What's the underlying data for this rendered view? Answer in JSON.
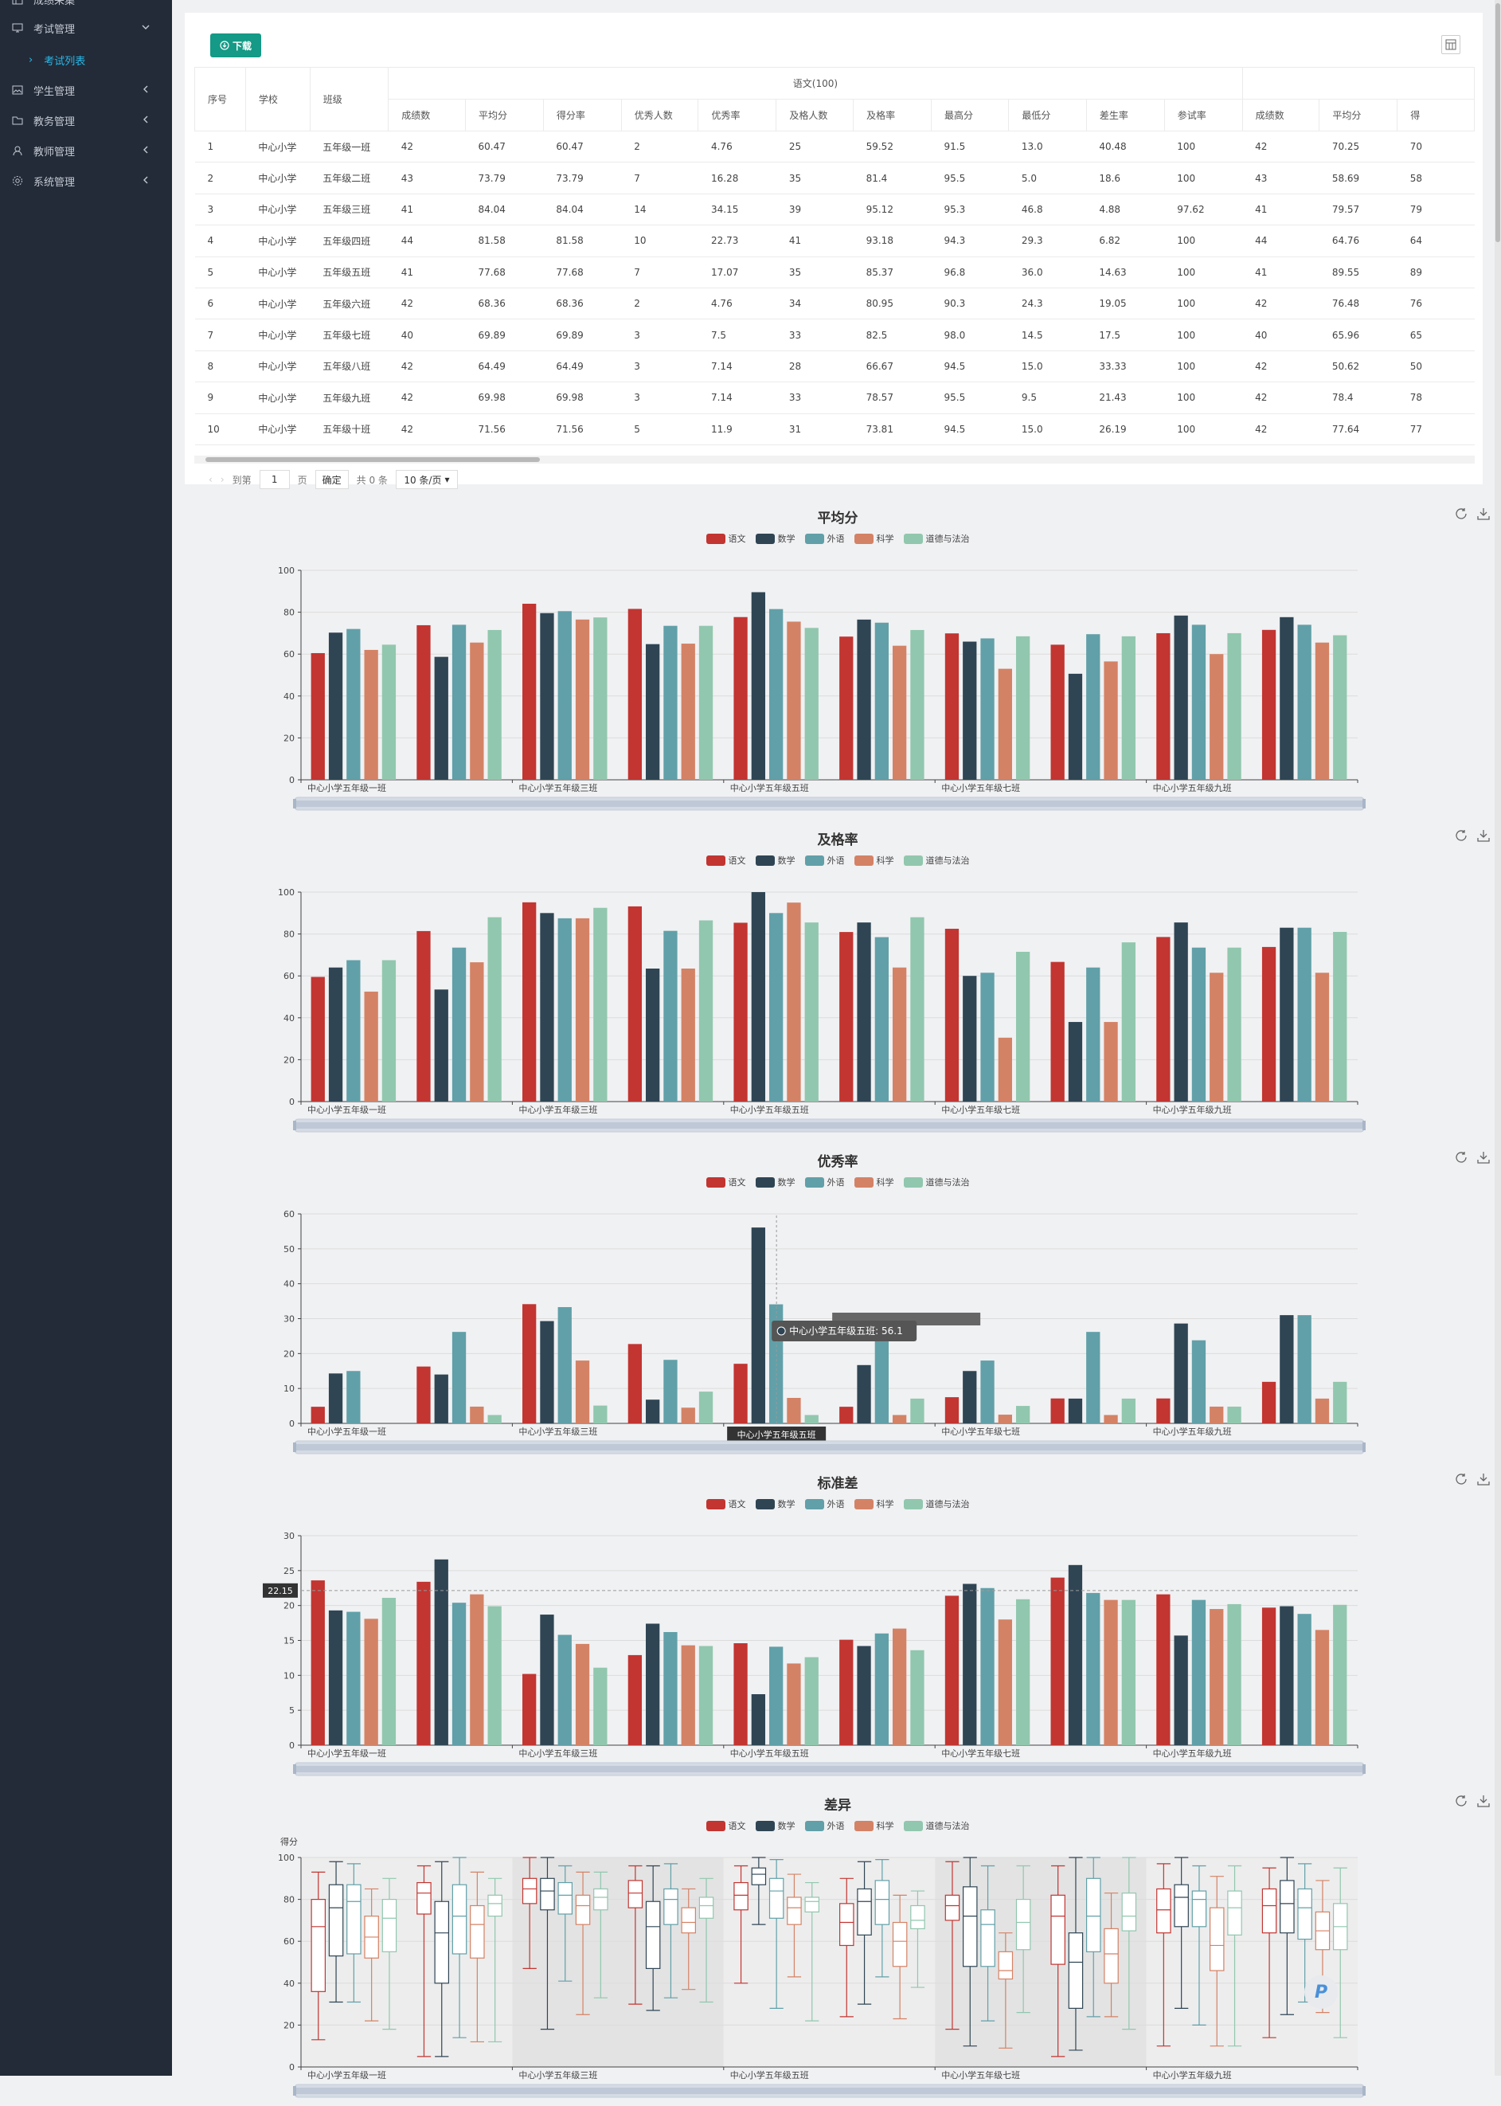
{
  "sidebar": {
    "items": [
      {
        "label": "成绩采集",
        "icon": "grid-icon",
        "arrow": false
      },
      {
        "label": "考试管理",
        "icon": "monitor-icon",
        "arrow": "down"
      },
      {
        "label": "考试列表",
        "sub": true
      },
      {
        "label": "学生管理",
        "icon": "image-icon",
        "arrow": "left"
      },
      {
        "label": "教务管理",
        "icon": "folder-icon",
        "arrow": "left"
      },
      {
        "label": "教师管理",
        "icon": "user-icon",
        "arrow": "left"
      },
      {
        "label": "系统管理",
        "icon": "gear-icon",
        "arrow": "left"
      }
    ]
  },
  "toolbar": {
    "download_label": "下载"
  },
  "table": {
    "group_header": "语文(100)",
    "fixed_headers": [
      "序号",
      "学校",
      "班级"
    ],
    "sub_headers": [
      "成绩数",
      "平均分",
      "得分率",
      "优秀人数",
      "优秀率",
      "及格人数",
      "及格率",
      "最高分",
      "最低分",
      "差生率",
      "参试率",
      "成绩数",
      "平均分",
      "得"
    ],
    "rows": [
      [
        "1",
        "中心小学",
        "五年级一班",
        "42",
        "60.47",
        "60.47",
        "2",
        "4.76",
        "25",
        "59.52",
        "91.5",
        "13.0",
        "40.48",
        "100",
        "42",
        "70.25",
        "70"
      ],
      [
        "2",
        "中心小学",
        "五年级二班",
        "43",
        "73.79",
        "73.79",
        "7",
        "16.28",
        "35",
        "81.4",
        "95.5",
        "5.0",
        "18.6",
        "100",
        "43",
        "58.69",
        "58"
      ],
      [
        "3",
        "中心小学",
        "五年级三班",
        "41",
        "84.04",
        "84.04",
        "14",
        "34.15",
        "39",
        "95.12",
        "95.3",
        "46.8",
        "4.88",
        "97.62",
        "41",
        "79.57",
        "79"
      ],
      [
        "4",
        "中心小学",
        "五年级四班",
        "44",
        "81.58",
        "81.58",
        "10",
        "22.73",
        "41",
        "93.18",
        "94.3",
        "29.3",
        "6.82",
        "100",
        "44",
        "64.76",
        "64"
      ],
      [
        "5",
        "中心小学",
        "五年级五班",
        "41",
        "77.68",
        "77.68",
        "7",
        "17.07",
        "35",
        "85.37",
        "96.8",
        "36.0",
        "14.63",
        "100",
        "41",
        "89.55",
        "89"
      ],
      [
        "6",
        "中心小学",
        "五年级六班",
        "42",
        "68.36",
        "68.36",
        "2",
        "4.76",
        "34",
        "80.95",
        "90.3",
        "24.3",
        "19.05",
        "100",
        "42",
        "76.48",
        "76"
      ],
      [
        "7",
        "中心小学",
        "五年级七班",
        "40",
        "69.89",
        "69.89",
        "3",
        "7.5",
        "33",
        "82.5",
        "98.0",
        "14.5",
        "17.5",
        "100",
        "40",
        "65.96",
        "65"
      ],
      [
        "8",
        "中心小学",
        "五年级八班",
        "42",
        "64.49",
        "64.49",
        "3",
        "7.14",
        "28",
        "66.67",
        "94.5",
        "15.0",
        "33.33",
        "100",
        "42",
        "50.62",
        "50"
      ],
      [
        "9",
        "中心小学",
        "五年级九班",
        "42",
        "69.98",
        "69.98",
        "3",
        "7.14",
        "33",
        "78.57",
        "95.5",
        "9.5",
        "21.43",
        "100",
        "42",
        "78.4",
        "78"
      ],
      [
        "10",
        "中心小学",
        "五年级十班",
        "42",
        "71.56",
        "71.56",
        "5",
        "11.9",
        "31",
        "73.81",
        "94.5",
        "15.0",
        "26.19",
        "100",
        "42",
        "77.64",
        "77"
      ]
    ]
  },
  "pager": {
    "goto": "到第",
    "page": "1",
    "page_unit": "页",
    "confirm": "确定",
    "total": "共 0 条",
    "size": "10 条/页"
  },
  "legend": [
    {
      "name": "语文",
      "color": "#c23531"
    },
    {
      "name": "数学",
      "color": "#2f4554"
    },
    {
      "name": "外语",
      "color": "#61a0a8"
    },
    {
      "name": "科学",
      "color": "#d48265"
    },
    {
      "name": "道德与法治",
      "color": "#91c7ae"
    }
  ],
  "chart_data": [
    {
      "type": "bar",
      "title": "平均分",
      "ylim": [
        0,
        100
      ],
      "yticks": [
        0,
        20,
        40,
        60,
        80,
        100
      ],
      "categories": [
        "中心小学五年级一班",
        "中心小学五年级二班",
        "中心小学五年级三班",
        "中心小学五年级四班",
        "中心小学五年级五班",
        "中心小学五年级六班",
        "中心小学五年级七班",
        "中心小学五年级八班",
        "中心小学五年级九班",
        "中心小学五年级十班"
      ],
      "x_labels": [
        "中心小学五年级一班",
        "中心小学五年级三班",
        "中心小学五年级五班",
        "中心小学五年级七班",
        "中心小学五年级九班"
      ],
      "series": [
        {
          "name": "语文",
          "values": [
            60.47,
            73.79,
            84.04,
            81.58,
            77.68,
            68.36,
            69.89,
            64.49,
            69.98,
            71.56
          ]
        },
        {
          "name": "数学",
          "values": [
            70.25,
            58.69,
            79.57,
            64.76,
            89.55,
            76.48,
            65.96,
            50.62,
            78.4,
            77.64
          ]
        },
        {
          "name": "外语",
          "values": [
            72,
            74,
            80.5,
            73.5,
            81.5,
            75,
            67.5,
            69.5,
            74,
            74
          ]
        },
        {
          "name": "科学",
          "values": [
            62,
            65.5,
            76.5,
            65,
            75.5,
            64,
            53,
            56.5,
            60,
            65.5
          ]
        },
        {
          "name": "道德与法治",
          "values": [
            64.5,
            71.5,
            77.5,
            73.5,
            72.5,
            71.5,
            68.5,
            68.5,
            70,
            69
          ]
        }
      ]
    },
    {
      "type": "bar",
      "title": "及格率",
      "ylim": [
        0,
        100
      ],
      "yticks": [
        0,
        20,
        40,
        60,
        80,
        100
      ],
      "categories": [
        "中心小学五年级一班",
        "中心小学五年级二班",
        "中心小学五年级三班",
        "中心小学五年级四班",
        "中心小学五年级五班",
        "中心小学五年级六班",
        "中心小学五年级七班",
        "中心小学五年级八班",
        "中心小学五年级九班",
        "中心小学五年级十班"
      ],
      "x_labels": [
        "中心小学五年级一班",
        "中心小学五年级三班",
        "中心小学五年级五班",
        "中心小学五年级七班",
        "中心小学五年级九班"
      ],
      "series": [
        {
          "name": "语文",
          "values": [
            59.52,
            81.4,
            95.12,
            93.18,
            85.37,
            80.95,
            82.5,
            66.67,
            78.57,
            73.81
          ]
        },
        {
          "name": "数学",
          "values": [
            64,
            53.5,
            90,
            63.5,
            100,
            85.5,
            60,
            38,
            85.5,
            83
          ]
        },
        {
          "name": "外语",
          "values": [
            67.5,
            73.5,
            87.5,
            81.5,
            90,
            78.5,
            61.5,
            64,
            73.5,
            83
          ]
        },
        {
          "name": "科学",
          "values": [
            52.5,
            66.5,
            87.5,
            63.5,
            95,
            64,
            30.5,
            38,
            61.5,
            61.5
          ]
        },
        {
          "name": "道德与法治",
          "values": [
            67.5,
            88,
            92.5,
            86.5,
            85.5,
            88,
            71.5,
            76,
            73.5,
            81
          ]
        }
      ]
    },
    {
      "type": "bar",
      "title": "优秀率",
      "ylim": [
        0,
        60
      ],
      "yticks": [
        0,
        10,
        20,
        30,
        40,
        50,
        60
      ],
      "categories": [
        "中心小学五年级一班",
        "中心小学五年级二班",
        "中心小学五年级三班",
        "中心小学五年级四班",
        "中心小学五年级五班",
        "中心小学五年级六班",
        "中心小学五年级七班",
        "中心小学五年级八班",
        "中心小学五年级九班",
        "中心小学五年级十班"
      ],
      "x_labels": [
        "中心小学五年级一班",
        "中心小学五年级三班",
        "中心小学五年级五班",
        "中心小学五年级七班",
        "中心小学五年级九班"
      ],
      "series": [
        {
          "name": "语文",
          "values": [
            4.76,
            16.28,
            34.15,
            22.73,
            17.07,
            4.76,
            7.5,
            7.14,
            7.14,
            11.9
          ]
        },
        {
          "name": "数学",
          "values": [
            14.3,
            14,
            29.3,
            6.8,
            56.1,
            16.7,
            15,
            7.1,
            28.6,
            31
          ]
        },
        {
          "name": "外语",
          "values": [
            15,
            26.2,
            33.3,
            18.2,
            34.1,
            26,
            18,
            26.2,
            23.8,
            31
          ]
        },
        {
          "name": "科学",
          "values": [
            0,
            4.8,
            18,
            4.5,
            7.3,
            2.4,
            2.5,
            2.4,
            4.8,
            7.1
          ]
        },
        {
          "name": "道德与法治",
          "values": [
            0,
            2.4,
            5.1,
            9.1,
            2.4,
            7.1,
            5,
            7.1,
            4.8,
            11.9
          ]
        }
      ],
      "tooltip": "中心小学五年级五班: 56.1",
      "axis_pointer_label": "中心小学五年级五班"
    },
    {
      "type": "bar",
      "title": "标准差",
      "ylim": [
        0,
        30
      ],
      "yticks": [
        0,
        5,
        10,
        15,
        20,
        25,
        30
      ],
      "categories": [
        "中心小学五年级一班",
        "中心小学五年级二班",
        "中心小学五年级三班",
        "中心小学五年级四班",
        "中心小学五年级五班",
        "中心小学五年级六班",
        "中心小学五年级七班",
        "中心小学五年级八班",
        "中心小学五年级九班",
        "中心小学五年级十班"
      ],
      "x_labels": [
        "中心小学五年级一班",
        "中心小学五年级三班",
        "中心小学五年级五班",
        "中心小学五年级七班",
        "中心小学五年级九班"
      ],
      "series": [
        {
          "name": "语文",
          "values": [
            23.6,
            23.4,
            10.2,
            12.9,
            14.6,
            15.1,
            21.4,
            24,
            21.6,
            19.7
          ]
        },
        {
          "name": "数学",
          "values": [
            19.3,
            26.6,
            18.7,
            17.4,
            7.3,
            14.2,
            23.1,
            25.8,
            15.7,
            19.9
          ]
        },
        {
          "name": "外语",
          "values": [
            19.1,
            20.4,
            15.8,
            16.2,
            14.1,
            16,
            22.5,
            21.8,
            20.8,
            18.8
          ]
        },
        {
          "name": "科学",
          "values": [
            18.1,
            21.6,
            14.5,
            14.3,
            11.7,
            16.7,
            18,
            20.8,
            19.5,
            16.5
          ]
        },
        {
          "name": "道德与法治",
          "values": [
            21.1,
            19.9,
            11.1,
            14.2,
            12.6,
            13.6,
            20.9,
            20.8,
            20.2,
            20.1
          ]
        }
      ],
      "marker_label": "22.15"
    },
    {
      "type": "boxplot",
      "title": "差异",
      "ylabel": "得分",
      "ylim": [
        0,
        100
      ],
      "yticks": [
        0,
        20,
        40,
        60,
        80,
        100
      ],
      "categories": [
        "中心小学五年级一班",
        "中心小学五年级二班",
        "中心小学五年级三班",
        "中心小学五年级四班",
        "中心小学五年级五班",
        "中心小学五年级六班",
        "中心小学五年级七班",
        "中心小学五年级八班",
        "中心小学五年级九班",
        "中心小学五年级十班"
      ],
      "x_labels": [
        "中心小学五年级一班",
        "中心小学五年级三班",
        "中心小学五年级五班",
        "中心小学五年级七班",
        "中心小学五年级九班"
      ],
      "series": [
        {
          "name": "语文",
          "boxes": [
            [
              13,
              36,
              67,
              80,
              93
            ],
            [
              5,
              73,
              83,
              88,
              96
            ],
            [
              47,
              78,
              85,
              90,
              100
            ],
            [
              30,
              76,
              83,
              89,
              96
            ],
            [
              40,
              75,
              82,
              88,
              96
            ],
            [
              24,
              58,
              69,
              78,
              90
            ],
            [
              18,
              70,
              77,
              82,
              98
            ],
            [
              5,
              49,
              72,
              82,
              96
            ],
            [
              10,
              64,
              75,
              85,
              97
            ],
            [
              14,
              64,
              77,
              85,
              95
            ]
          ]
        },
        {
          "name": "数学",
          "boxes": [
            [
              31,
              53,
              76,
              87,
              98
            ],
            [
              5,
              40,
              64,
              79,
              98
            ],
            [
              18,
              75,
              84,
              90,
              100
            ],
            [
              27,
              47,
              67,
              79,
              96
            ],
            [
              68,
              87,
              92,
              95,
              100
            ],
            [
              30,
              63,
              79,
              85,
              98
            ],
            [
              10,
              48,
              72,
              86,
              100
            ],
            [
              8,
              28,
              50,
              64,
              100
            ],
            [
              28,
              67,
              81,
              87,
              100
            ],
            [
              25,
              64,
              78,
              89,
              100
            ]
          ]
        },
        {
          "name": "外语",
          "boxes": [
            [
              31,
              54,
              79,
              87,
              97
            ],
            [
              14,
              54,
              72,
              87,
              100
            ],
            [
              41,
              73,
              82,
              88,
              96
            ],
            [
              33,
              68,
              80,
              85,
              97
            ],
            [
              28,
              71,
              84,
              90,
              99
            ],
            [
              43,
              68,
              80,
              89,
              99
            ],
            [
              22,
              48,
              68,
              75,
              96
            ],
            [
              24,
              55,
              72,
              90,
              100
            ],
            [
              20,
              67,
              80,
              84,
              96
            ],
            [
              31,
              61,
              76,
              85,
              97
            ]
          ]
        },
        {
          "name": "科学",
          "boxes": [
            [
              22,
              52,
              62,
              72,
              85
            ],
            [
              12,
              52,
              68,
              77,
              93
            ],
            [
              25,
              68,
              77,
              82,
              93
            ],
            [
              37,
              64,
              69,
              76,
              85
            ],
            [
              43,
              68,
              76,
              81,
              92
            ],
            [
              23,
              48,
              60,
              69,
              82
            ],
            [
              9,
              42,
              46,
              55,
              64
            ],
            [
              24,
              40,
              54,
              66,
              83
            ],
            [
              10,
              46,
              58,
              76,
              91
            ],
            [
              26,
              56,
              65,
              74,
              89
            ]
          ]
        },
        {
          "name": "道德与法治",
          "boxes": [
            [
              18,
              55,
              71,
              80,
              90
            ],
            [
              12,
              72,
              78,
              82,
              90
            ],
            [
              33,
              75,
              81,
              85,
              93
            ],
            [
              31,
              71,
              77,
              81,
              90
            ],
            [
              22,
              74,
              79,
              81,
              88
            ],
            [
              38,
              66,
              70,
              77,
              84
            ],
            [
              26,
              56,
              69,
              80,
              96
            ],
            [
              18,
              65,
              72,
              83,
              100
            ],
            [
              10,
              63,
              76,
              84,
              96
            ],
            [
              14,
              56,
              67,
              78,
              95
            ]
          ]
        }
      ]
    }
  ]
}
